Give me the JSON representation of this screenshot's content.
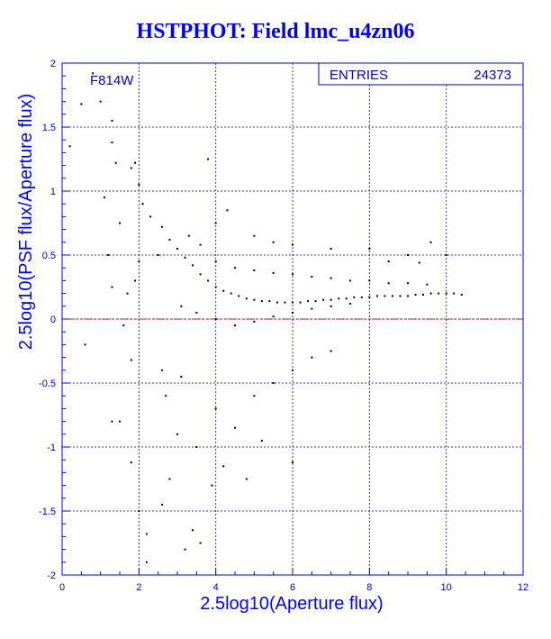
{
  "chart_data": {
    "type": "scatter",
    "title": "HSTPHOT: Field lmc_u4zn06",
    "xlabel": "2.5log10(Aperture flux)",
    "ylabel": "2.5log10(PSF flux/Aperture flux)",
    "xlim": [
      0,
      12
    ],
    "ylim": [
      -2,
      2
    ],
    "x_ticks": [
      "0",
      "2",
      "4",
      "6",
      "8",
      "10",
      "12"
    ],
    "y_ticks": [
      "-2",
      "-1.5",
      "-1",
      "-0.5",
      "0",
      "0.5",
      "1",
      "1.5",
      "2"
    ],
    "grid": true,
    "reference_line": {
      "y": 0,
      "color": "#ff0000",
      "style": "dashed"
    },
    "filter_label": "F814W",
    "stats_box": {
      "label": "ENTRIES",
      "value": "24373"
    },
    "colors": {
      "title": "#0000ff",
      "axes": "#0000ff",
      "points": "#000000",
      "zero_line": "#ff0000",
      "grid": "#3333cc"
    },
    "series": [
      {
        "description": "dense locus",
        "points": [
          [
            2.6,
            0.72
          ],
          [
            2.8,
            0.62
          ],
          [
            3.0,
            0.55
          ],
          [
            3.2,
            0.48
          ],
          [
            3.4,
            0.42
          ],
          [
            3.6,
            0.35
          ],
          [
            3.8,
            0.3
          ],
          [
            4.0,
            0.25
          ],
          [
            4.2,
            0.22
          ],
          [
            4.4,
            0.2
          ],
          [
            4.6,
            0.18
          ],
          [
            4.8,
            0.16
          ],
          [
            5.0,
            0.15
          ],
          [
            5.2,
            0.14
          ],
          [
            5.4,
            0.14
          ],
          [
            5.6,
            0.13
          ],
          [
            5.8,
            0.13
          ],
          [
            6.0,
            0.13
          ],
          [
            6.2,
            0.13
          ],
          [
            6.4,
            0.14
          ],
          [
            6.6,
            0.14
          ],
          [
            6.8,
            0.15
          ],
          [
            7.0,
            0.15
          ],
          [
            7.2,
            0.16
          ],
          [
            7.4,
            0.16
          ],
          [
            7.6,
            0.17
          ],
          [
            7.8,
            0.17
          ],
          [
            8.0,
            0.17
          ],
          [
            8.2,
            0.18
          ],
          [
            8.4,
            0.18
          ],
          [
            8.6,
            0.18
          ],
          [
            8.8,
            0.18
          ],
          [
            9.0,
            0.18
          ],
          [
            9.2,
            0.19
          ],
          [
            9.4,
            0.19
          ],
          [
            9.6,
            0.2
          ],
          [
            9.8,
            0.2
          ],
          [
            10.0,
            0.2
          ],
          [
            10.2,
            0.2
          ],
          [
            10.4,
            0.19
          ],
          [
            3.1,
            0.1
          ],
          [
            3.5,
            0.05
          ],
          [
            4.0,
            0.0
          ],
          [
            4.5,
            -0.05
          ],
          [
            5.0,
            -0.02
          ],
          [
            5.5,
            0.02
          ],
          [
            6.0,
            0.05
          ],
          [
            6.5,
            0.08
          ],
          [
            7.0,
            0.1
          ],
          [
            7.5,
            0.12
          ],
          [
            3.3,
            0.65
          ],
          [
            3.6,
            0.58
          ],
          [
            4.0,
            0.45
          ],
          [
            4.5,
            0.4
          ],
          [
            5.0,
            0.38
          ],
          [
            5.5,
            0.36
          ],
          [
            6.0,
            0.35
          ],
          [
            6.5,
            0.33
          ],
          [
            7.0,
            0.32
          ],
          [
            7.5,
            0.3
          ],
          [
            8.0,
            0.3
          ],
          [
            8.5,
            0.28
          ],
          [
            9.0,
            0.28
          ],
          [
            9.5,
            0.27
          ]
        ]
      },
      {
        "description": "scattered outliers",
        "points": [
          [
            0.5,
            1.68
          ],
          [
            0.8,
            1.92
          ],
          [
            1.0,
            1.7
          ],
          [
            0.2,
            1.35
          ],
          [
            1.3,
            1.38
          ],
          [
            1.4,
            1.22
          ],
          [
            1.3,
            1.55
          ],
          [
            1.8,
            1.18
          ],
          [
            1.9,
            1.22
          ],
          [
            2.0,
            1.05
          ],
          [
            3.8,
            1.25
          ],
          [
            2.1,
            0.9
          ],
          [
            2.0,
            0.45
          ],
          [
            1.5,
            0.75
          ],
          [
            1.9,
            0.3
          ],
          [
            1.3,
            0.25
          ],
          [
            1.2,
            0.5
          ],
          [
            1.6,
            -0.05
          ],
          [
            1.8,
            -0.32
          ],
          [
            1.3,
            -0.8
          ],
          [
            1.5,
            -0.8
          ],
          [
            1.8,
            -1.12
          ],
          [
            2.0,
            -1.5
          ],
          [
            2.2,
            -1.68
          ],
          [
            2.2,
            -1.9
          ],
          [
            2.6,
            -1.45
          ],
          [
            2.8,
            -1.25
          ],
          [
            3.2,
            -1.8
          ],
          [
            3.4,
            -1.65
          ],
          [
            3.6,
            -1.75
          ],
          [
            3.9,
            -1.3
          ],
          [
            3.5,
            -1.0
          ],
          [
            3.0,
            -0.9
          ],
          [
            2.7,
            -0.6
          ],
          [
            2.6,
            -0.4
          ],
          [
            3.1,
            -0.45
          ],
          [
            4.0,
            -0.7
          ],
          [
            4.5,
            -0.85
          ],
          [
            5.0,
            -0.6
          ],
          [
            5.5,
            -0.5
          ],
          [
            6.0,
            -0.4
          ],
          [
            6.5,
            -0.3
          ],
          [
            7.0,
            -0.25
          ],
          [
            4.2,
            -1.15
          ],
          [
            4.8,
            -1.25
          ],
          [
            5.2,
            -0.95
          ],
          [
            6.0,
            -1.12
          ],
          [
            4.3,
            0.85
          ],
          [
            4.0,
            0.75
          ],
          [
            5.0,
            0.65
          ],
          [
            5.5,
            0.6
          ],
          [
            6.0,
            0.58
          ],
          [
            7.0,
            0.55
          ],
          [
            8.0,
            0.55
          ],
          [
            9.0,
            0.5
          ],
          [
            9.6,
            0.6
          ],
          [
            10.0,
            0.5
          ],
          [
            8.5,
            0.45
          ],
          [
            9.3,
            0.44
          ],
          [
            0.6,
            -0.2
          ],
          [
            1.1,
            0.95
          ],
          [
            2.3,
            0.8
          ],
          [
            2.5,
            0.5
          ],
          [
            1.7,
            0.2
          ]
        ]
      }
    ]
  }
}
